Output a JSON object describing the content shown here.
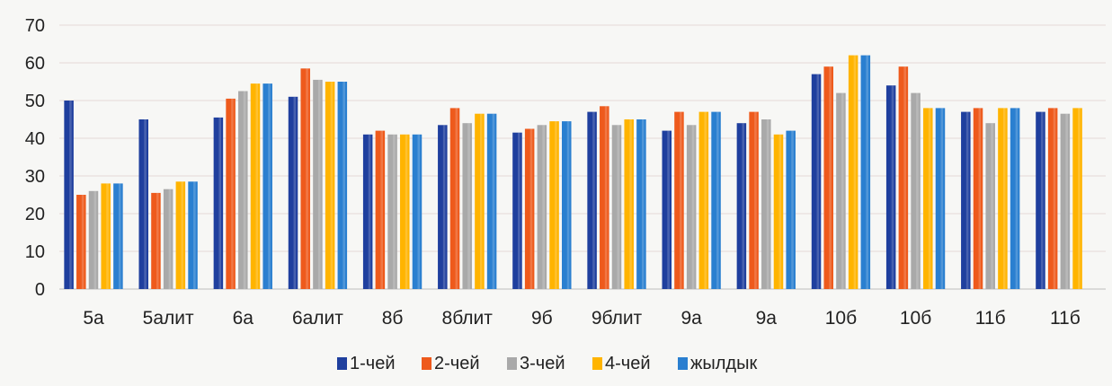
{
  "chart_data": {
    "type": "bar",
    "categories": [
      "5а",
      "5алит",
      "6а",
      "6алит",
      "8б",
      "8блит",
      "9б",
      "9блит",
      "9а",
      "9а",
      "10б",
      "10б",
      "11б",
      "11б"
    ],
    "series": [
      {
        "name": "1-чей",
        "color": "#1f3f9e",
        "values": [
          50,
          45,
          45.5,
          51,
          41,
          43.5,
          41.5,
          47,
          42,
          44,
          57,
          54,
          47,
          47
        ]
      },
      {
        "name": "2-чей",
        "color": "#ee5a1c",
        "values": [
          25,
          25.5,
          50.5,
          58.5,
          42,
          48,
          42.5,
          48.5,
          47,
          47,
          59,
          59,
          48,
          48
        ]
      },
      {
        "name": "3-чей",
        "color": "#a9a9a9",
        "values": [
          26,
          26.5,
          52.5,
          55.5,
          41,
          44,
          43.5,
          43.5,
          43.5,
          45,
          52,
          52,
          44,
          46.5
        ]
      },
      {
        "name": "4-чей",
        "color": "#ffb400",
        "values": [
          28,
          28.5,
          54.5,
          55,
          41,
          46.5,
          44.5,
          45,
          47,
          41,
          62,
          48,
          48,
          48
        ]
      },
      {
        "name": "жылдык",
        "color": "#2a7fd0",
        "values": [
          28,
          28.5,
          54.5,
          55,
          41,
          46.5,
          44.5,
          45,
          47,
          42,
          62,
          48,
          48,
          null
        ]
      }
    ],
    "title": "",
    "xlabel": "",
    "ylabel": "",
    "ylim": [
      0,
      70
    ],
    "yticks": [
      "0",
      "10",
      "20",
      "30",
      "40",
      "50",
      "60",
      "70"
    ],
    "grid": true,
    "legend_position": "bottom"
  }
}
